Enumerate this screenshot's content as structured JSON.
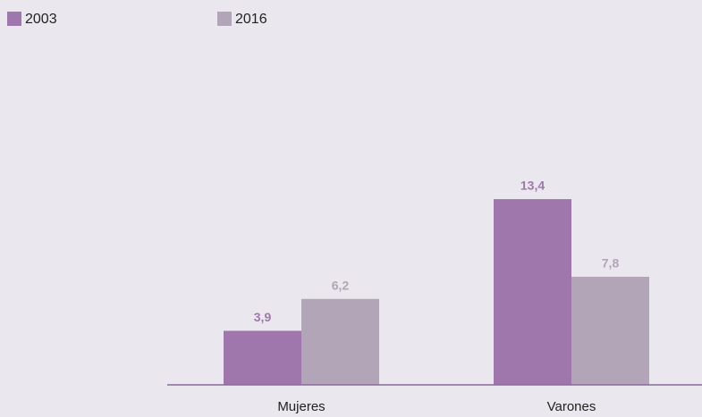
{
  "chart_data": {
    "type": "bar",
    "categories": [
      "Mujeres",
      "Varones"
    ],
    "series": [
      {
        "name": "2003",
        "color": "#a077ad",
        "values": [
          3.9,
          13.4
        ],
        "value_labels": [
          "3,9",
          "13,4"
        ]
      },
      {
        "name": "2016",
        "color": "#b3a5b8",
        "values": [
          6.2,
          7.8
        ],
        "value_labels": [
          "6,2",
          "7,8"
        ]
      }
    ],
    "ylim": [
      0,
      25
    ]
  }
}
